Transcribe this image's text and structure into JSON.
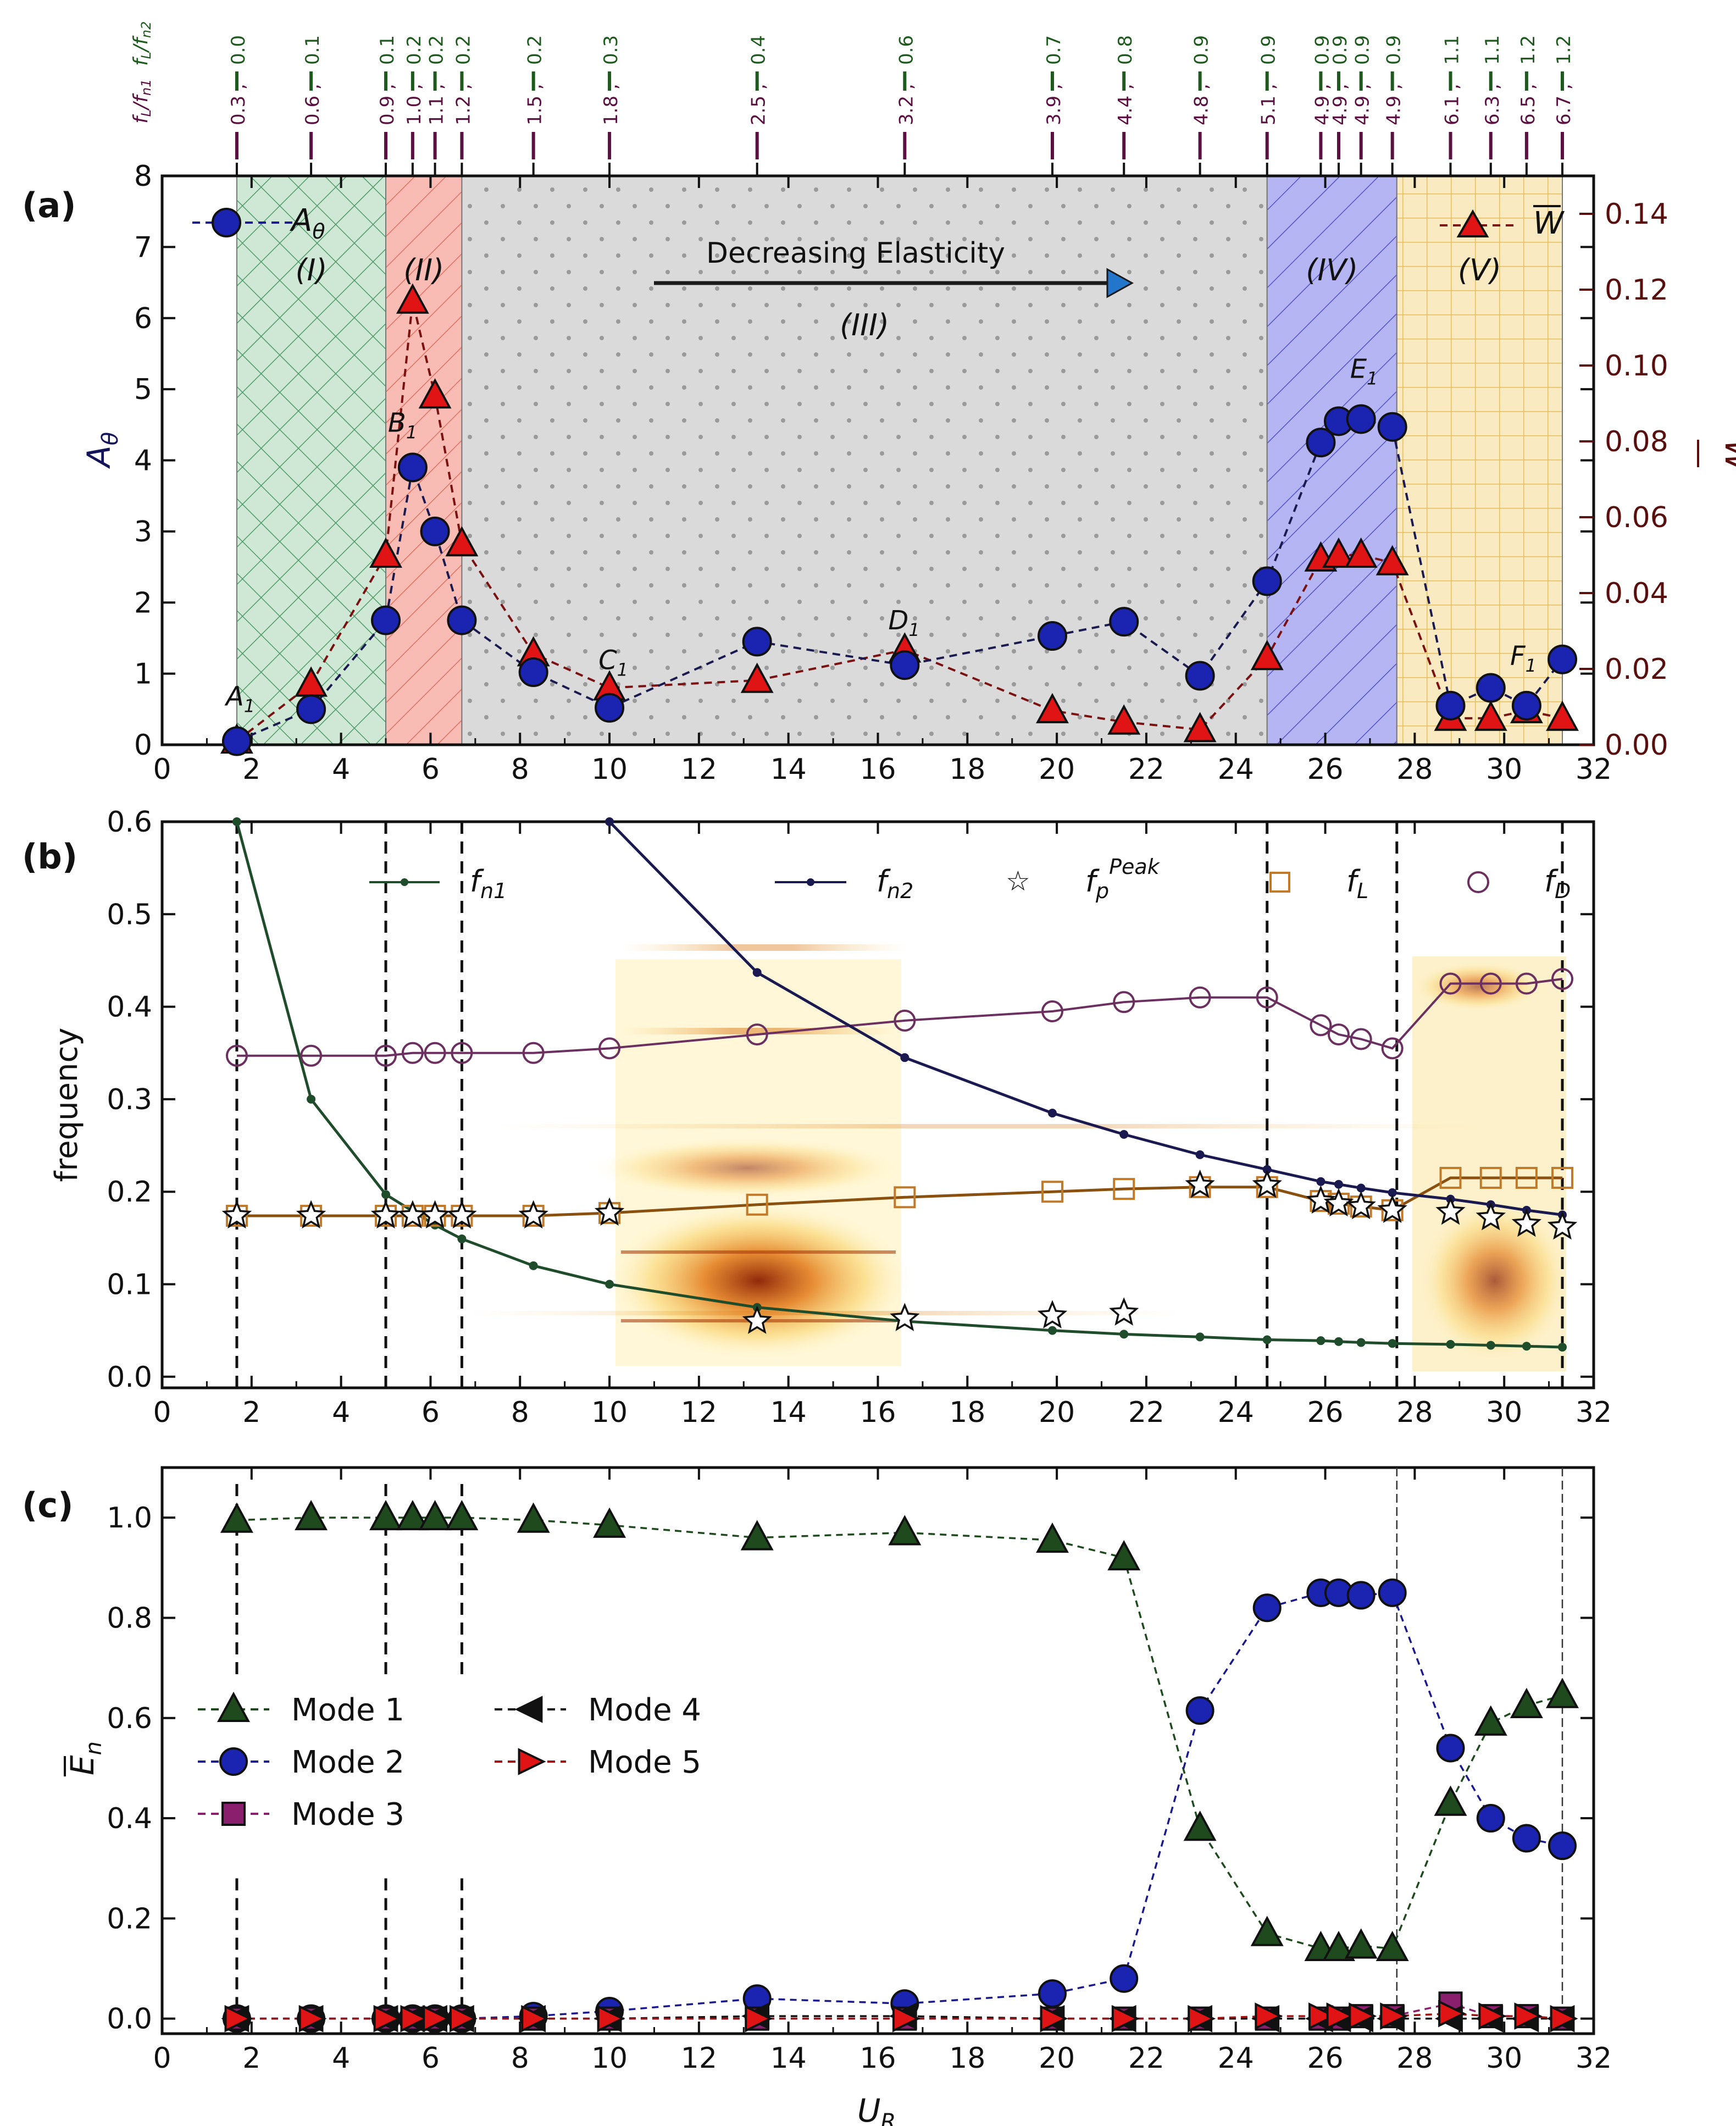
{
  "chart_data": [
    {
      "panel_label": "(a)",
      "type": "line",
      "xlabel": "",
      "xlim": [
        0,
        32
      ],
      "xticks": [
        0,
        2,
        4,
        6,
        8,
        10,
        12,
        14,
        16,
        18,
        20,
        22,
        24,
        26,
        28,
        30,
        32
      ],
      "ylabel_left": "A",
      "ylabel_left_sub": "θ",
      "ylim_left": [
        0,
        8
      ],
      "yticks_left": [
        0,
        1,
        2,
        3,
        4,
        5,
        6,
        7,
        8
      ],
      "ylabel_right": "W",
      "ylim_right": [
        0,
        0.15
      ],
      "yticks_right": [
        "0.00",
        "0.02",
        "0.04",
        "0.06",
        "0.08",
        "0.10",
        "0.12",
        "0.14"
      ],
      "top_axis": {
        "label_row1": "fL/fn1",
        "label_row2": "fL/fn2",
        "tick_labels": [
          {
            "x": 1.67,
            "a": "0.3",
            "b": "0.0"
          },
          {
            "x": 3.33,
            "a": "0.6",
            "b": "0.1"
          },
          {
            "x": 5.0,
            "a": "0.9",
            "b": "0.1"
          },
          {
            "x": 5.6,
            "a": "1.0",
            "b": "0.2"
          },
          {
            "x": 6.1,
            "a": "1.1",
            "b": "0.2"
          },
          {
            "x": 6.7,
            "a": "1.2",
            "b": "0.2"
          },
          {
            "x": 8.3,
            "a": "1.5",
            "b": "0.2"
          },
          {
            "x": 10.0,
            "a": "1.8",
            "b": "0.3"
          },
          {
            "x": 13.3,
            "a": "2.5",
            "b": "0.4"
          },
          {
            "x": 16.6,
            "a": "3.2",
            "b": "0.6"
          },
          {
            "x": 19.9,
            "a": "3.9",
            "b": "0.7"
          },
          {
            "x": 21.5,
            "a": "4.4",
            "b": "0.8"
          },
          {
            "x": 23.2,
            "a": "4.8",
            "b": "0.9"
          },
          {
            "x": 24.7,
            "a": "5.1",
            "b": "0.9"
          },
          {
            "x": 25.9,
            "a": "4.9",
            "b": "0.9"
          },
          {
            "x": 26.3,
            "a": "4.9",
            "b": "0.9"
          },
          {
            "x": 26.8,
            "a": "4.9",
            "b": "0.9"
          },
          {
            "x": 27.5,
            "a": "4.9",
            "b": "0.9"
          },
          {
            "x": 28.8,
            "a": "6.1",
            "b": "1.1"
          },
          {
            "x": 29.7,
            "a": "6.3",
            "b": "1.1"
          },
          {
            "x": 30.5,
            "a": "6.5",
            "b": "1.2"
          },
          {
            "x": 31.3,
            "a": "6.7",
            "b": "1.2"
          }
        ]
      },
      "regions": [
        {
          "label": "(I)",
          "x0": 1.67,
          "x1": 5.0,
          "color": "#5fb37f"
        },
        {
          "label": "(II)",
          "x0": 5.0,
          "x1": 6.7,
          "color": "#f48a80"
        },
        {
          "label": "(III)",
          "x0": 6.7,
          "x1": 24.7,
          "color": "#c9c9c9"
        },
        {
          "label": "(IV)",
          "x0": 24.7,
          "x1": 27.6,
          "color": "#7f7ff0"
        },
        {
          "label": "(V)",
          "x0": 27.6,
          "x1": 31.3,
          "color": "#f6dfa2"
        }
      ],
      "arrow_text": "Decreasing Elasticity",
      "series": [
        {
          "name": "Aθ",
          "axis": "left",
          "marker": "circle",
          "color": "#1a1a8c",
          "x": [
            1.67,
            3.33,
            5.0,
            5.6,
            6.1,
            6.7,
            8.3,
            10.0,
            13.3,
            16.6,
            19.9,
            21.5,
            23.2,
            24.7,
            25.9,
            26.3,
            26.8,
            27.5,
            28.8,
            29.7,
            30.5,
            31.3
          ],
          "y": [
            0.05,
            0.5,
            1.75,
            3.9,
            3.0,
            1.75,
            1.02,
            0.52,
            1.45,
            1.12,
            1.53,
            1.73,
            0.97,
            2.3,
            4.25,
            4.55,
            4.58,
            4.47,
            0.55,
            0.8,
            0.55,
            1.2
          ]
        },
        {
          "name": "W",
          "axis": "right",
          "marker": "triangle",
          "color": "#cc1111",
          "x": [
            1.67,
            3.33,
            5.0,
            5.6,
            6.1,
            6.7,
            8.3,
            10.0,
            13.3,
            16.6,
            19.9,
            21.5,
            23.2,
            24.7,
            25.9,
            26.3,
            26.8,
            27.5,
            28.8,
            29.7,
            30.5,
            31.3
          ],
          "y": [
            0.001,
            0.016,
            0.05,
            0.117,
            0.092,
            0.053,
            0.024,
            0.015,
            0.017,
            0.025,
            0.009,
            0.006,
            0.004,
            0.023,
            0.049,
            0.05,
            0.05,
            0.048,
            0.007,
            0.007,
            0.009,
            0.007
          ]
        }
      ],
      "point_labels": [
        {
          "text": "A",
          "sub": "1",
          "x": 1.67,
          "y": 0.05
        },
        {
          "text": "B",
          "sub": "1",
          "x": 5.6,
          "y": 3.9
        },
        {
          "text": "C",
          "sub": "1",
          "x": 10.0,
          "y": 0.52
        },
        {
          "text": "D",
          "sub": "1",
          "x": 16.6,
          "y": 1.12
        },
        {
          "text": "E",
          "sub": "1",
          "x": 26.8,
          "y": 4.58
        },
        {
          "text": "F",
          "sub": "1",
          "x": 31.3,
          "y": 1.2
        }
      ]
    },
    {
      "panel_label": "(b)",
      "type": "line",
      "ylabel": "frequency",
      "xlim": [
        0,
        32
      ],
      "ylim": [
        0,
        0.6
      ],
      "yticks": [
        "0.0",
        "0.1",
        "0.2",
        "0.3",
        "0.4",
        "0.5",
        "0.6"
      ],
      "vlines": [
        1.67,
        5.0,
        6.7,
        24.7,
        27.6,
        31.3
      ],
      "legend": [
        "fn1",
        "fn2",
        "fp Peak",
        "fL",
        "fD"
      ],
      "series": [
        {
          "name": "fn1",
          "color": "#1f4d2c",
          "x": [
            1.67,
            3.33,
            5.0,
            5.6,
            6.1,
            6.7,
            8.3,
            10.0,
            13.3,
            16.6,
            19.9,
            21.5,
            23.2,
            24.7,
            25.9,
            26.3,
            26.8,
            27.5,
            28.8,
            29.7,
            30.5,
            31.3
          ],
          "y": [
            0.6,
            0.3,
            0.197,
            0.179,
            0.164,
            0.149,
            0.12,
            0.1,
            0.075,
            0.06,
            0.05,
            0.046,
            0.043,
            0.04,
            0.039,
            0.038,
            0.037,
            0.036,
            0.035,
            0.034,
            0.033,
            0.032
          ]
        },
        {
          "name": "fn2",
          "color": "#1a1a50",
          "x": [
            10.0,
            13.3,
            16.6,
            19.9,
            21.5,
            23.2,
            24.7,
            25.9,
            26.3,
            26.8,
            27.5,
            28.8,
            29.7,
            30.5,
            31.3
          ],
          "y": [
            0.6,
            0.437,
            0.345,
            0.285,
            0.262,
            0.24,
            0.224,
            0.211,
            0.208,
            0.204,
            0.199,
            0.192,
            0.186,
            0.18,
            0.175
          ]
        },
        {
          "name": "fp Peak",
          "x": [
            1.67,
            3.33,
            5.0,
            5.6,
            6.1,
            6.7,
            8.3,
            10.0,
            13.3,
            16.6,
            19.9,
            21.5,
            23.2,
            24.7,
            25.9,
            26.3,
            26.8,
            27.5,
            28.8,
            29.7,
            30.5,
            31.3
          ],
          "y": [
            0.174,
            0.174,
            0.174,
            0.174,
            0.174,
            0.174,
            0.174,
            0.177,
            0.06,
            0.063,
            0.066,
            0.069,
            0.207,
            0.207,
            0.19,
            0.187,
            0.184,
            0.18,
            0.178,
            0.172,
            0.165,
            0.162
          ]
        },
        {
          "name": "fL",
          "color": "#c07a2a",
          "x": [
            1.67,
            3.33,
            5.0,
            5.6,
            6.1,
            6.7,
            8.3,
            10.0,
            13.3,
            16.6,
            19.9,
            21.5,
            23.2,
            24.7,
            25.9,
            26.3,
            26.8,
            27.5,
            28.8,
            29.7,
            30.5,
            31.3
          ],
          "y": [
            0.174,
            0.174,
            0.174,
            0.174,
            0.174,
            0.174,
            0.174,
            0.177,
            0.186,
            0.194,
            0.2,
            0.203,
            0.205,
            0.205,
            0.19,
            0.187,
            0.184,
            0.18,
            0.215,
            0.215,
            0.215,
            0.215
          ]
        },
        {
          "name": "fD",
          "color": "#6b3060",
          "x": [
            1.67,
            3.33,
            5.0,
            5.6,
            6.1,
            6.7,
            8.3,
            10.0,
            13.3,
            16.6,
            19.9,
            21.5,
            23.2,
            24.7,
            25.9,
            26.3,
            26.8,
            27.5,
            28.8,
            29.7,
            30.5,
            31.3
          ],
          "y": [
            0.347,
            0.347,
            0.347,
            0.35,
            0.35,
            0.35,
            0.35,
            0.355,
            0.37,
            0.385,
            0.395,
            0.405,
            0.41,
            0.41,
            0.38,
            0.37,
            0.365,
            0.355,
            0.425,
            0.425,
            0.425,
            0.43
          ]
        }
      ]
    },
    {
      "panel_label": "(c)",
      "type": "line",
      "xlabel": "U",
      "xlabel_sub": "R",
      "ylabel": "E",
      "ylabel_sub": "n",
      "xlim": [
        0,
        32
      ],
      "ylim": [
        -0.03,
        1.1
      ],
      "yticks": [
        "0.0",
        "0.2",
        "0.4",
        "0.6",
        "0.8",
        "1.0"
      ],
      "legend_ncol": 2,
      "x": [
        1.67,
        3.33,
        5.0,
        5.6,
        6.1,
        6.7,
        8.3,
        10.0,
        13.3,
        16.6,
        19.9,
        21.5,
        23.2,
        24.7,
        25.9,
        26.3,
        26.8,
        27.5,
        28.8,
        29.7,
        30.5,
        31.3
      ],
      "series": [
        {
          "name": "Mode 1",
          "marker": "triangle",
          "color": "#1e4a1e",
          "y": [
            0.995,
            1.0,
            1.0,
            1.0,
            1.0,
            1.0,
            0.995,
            0.985,
            0.96,
            0.97,
            0.955,
            0.92,
            0.38,
            0.17,
            0.14,
            0.14,
            0.145,
            0.14,
            0.43,
            0.59,
            0.625,
            0.645
          ]
        },
        {
          "name": "Mode 2",
          "marker": "circle",
          "color": "#1a1a8c",
          "y": [
            0.0,
            0.0,
            0.0,
            0.0,
            0.0,
            0.0,
            0.005,
            0.015,
            0.04,
            0.03,
            0.05,
            0.08,
            0.615,
            0.82,
            0.85,
            0.85,
            0.845,
            0.85,
            0.54,
            0.4,
            0.36,
            0.345
          ]
        },
        {
          "name": "Mode 3",
          "marker": "square",
          "color": "#8a1f6e",
          "y": [
            0.0,
            0.0,
            0.0,
            0.0,
            0.0,
            0.0,
            0.0,
            0.0,
            0.0,
            0.0,
            0.0,
            0.0,
            0.0,
            0.0,
            0.0,
            0.0,
            0.005,
            0.005,
            0.03,
            0.005,
            0.005,
            0.0
          ]
        },
        {
          "name": "Mode 4",
          "marker": "triangle-left",
          "color": "#111111",
          "y": [
            0.0,
            0.0,
            0.0,
            0.0,
            0.0,
            0.0,
            0.0,
            0.0,
            0.005,
            0.005,
            0.0,
            0.0,
            0.0,
            0.0,
            0.0,
            0.0,
            0.0,
            0.0,
            0.0,
            0.0,
            0.0,
            0.0
          ]
        },
        {
          "name": "Mode 5",
          "marker": "triangle-right",
          "color": "#e01414",
          "y": [
            0.0,
            0.0,
            0.0,
            0.0,
            0.0,
            0.0,
            0.0,
            0.0,
            0.0,
            0.0,
            0.0,
            0.0,
            0.0,
            0.005,
            0.005,
            0.005,
            0.005,
            0.005,
            0.01,
            0.005,
            0.005,
            0.0
          ]
        }
      ]
    }
  ]
}
